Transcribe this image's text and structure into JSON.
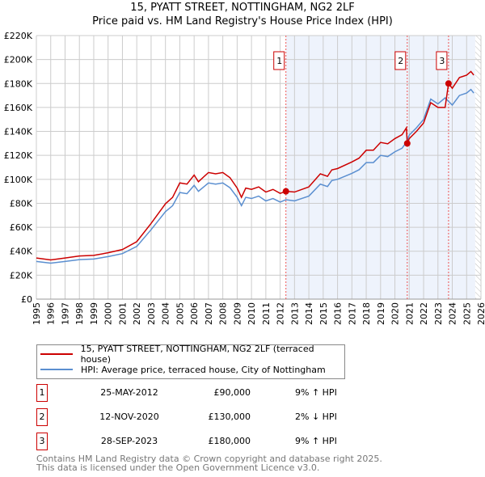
{
  "chart_data": {
    "type": "line",
    "title": "15, PYATT STREET, NOTTINGHAM, NG2 2LF",
    "subtitle": "Price paid vs. HM Land Registry's House Price Index (HPI)",
    "xlim": [
      1995,
      2026
    ],
    "ylim": [
      0,
      220000
    ],
    "x_ticks": [
      "1995",
      "1996",
      "1997",
      "1998",
      "1999",
      "2000",
      "2001",
      "2002",
      "2003",
      "2004",
      "2005",
      "2006",
      "2007",
      "2008",
      "2009",
      "2010",
      "2011",
      "2012",
      "2013",
      "2014",
      "2015",
      "2016",
      "2017",
      "2018",
      "2019",
      "2020",
      "2021",
      "2022",
      "2023",
      "2024",
      "2025",
      "2026"
    ],
    "y_ticks": [
      {
        "v": 0,
        "l": "£0"
      },
      {
        "v": 20000,
        "l": "£20K"
      },
      {
        "v": 40000,
        "l": "£40K"
      },
      {
        "v": 60000,
        "l": "£60K"
      },
      {
        "v": 80000,
        "l": "£80K"
      },
      {
        "v": 100000,
        "l": "£100K"
      },
      {
        "v": 120000,
        "l": "£120K"
      },
      {
        "v": 140000,
        "l": "£140K"
      },
      {
        "v": 160000,
        "l": "£160K"
      },
      {
        "v": 180000,
        "l": "£180K"
      },
      {
        "v": 200000,
        "l": "£200K"
      },
      {
        "v": 220000,
        "l": "£220K"
      }
    ],
    "grid": true,
    "shaded_range": [
      2012.4,
      2025.6
    ],
    "hatched_range": [
      2025.6,
      2026
    ],
    "series": [
      {
        "name": "15, PYATT STREET, NOTTINGHAM, NG2 2LF (terraced house)",
        "color": "#cc0000",
        "x": [
          1995,
          1996,
          1997,
          1998,
          1999,
          2000,
          2001,
          2002,
          2003,
          2004,
          2004.5,
          2005,
          2005.5,
          2006,
          2006.3,
          2007,
          2007.5,
          2008,
          2008.5,
          2009,
          2009.3,
          2009.6,
          2010,
          2010.5,
          2011,
          2011.5,
          2012,
          2012.4,
          2013,
          2014,
          2014.8,
          2015.3,
          2015.6,
          2016,
          2017,
          2017.5,
          2018,
          2018.5,
          2019,
          2019.5,
          2020,
          2020.5,
          2020.8,
          2020.86,
          2021,
          2021.5,
          2022,
          2022.5,
          2023,
          2023.5,
          2023.74,
          2024,
          2024.5,
          2025,
          2025.3,
          2025.5
        ],
        "y": [
          34300,
          32700,
          34300,
          36000,
          36500,
          38700,
          41400,
          48000,
          63200,
          79600,
          85000,
          97000,
          96000,
          103600,
          98000,
          105700,
          104600,
          105700,
          101400,
          92700,
          85000,
          92700,
          91600,
          93700,
          89400,
          91600,
          88300,
          90000,
          89400,
          93700,
          104600,
          102500,
          107900,
          109000,
          114500,
          117700,
          124300,
          124300,
          130800,
          129700,
          134000,
          137300,
          143000,
          130000,
          134000,
          140000,
          147000,
          164000,
          160000,
          160000,
          180000,
          176000,
          185000,
          187000,
          190000,
          187000
        ]
      },
      {
        "name": "HPI: Average price, terraced house, City of Nottingham",
        "color": "#5b8fd0",
        "x": [
          1995,
          1996,
          1997,
          1998,
          1999,
          2000,
          2001,
          2002,
          2003,
          2004,
          2004.5,
          2005,
          2005.5,
          2006,
          2006.3,
          2007,
          2007.5,
          2008,
          2008.5,
          2009,
          2009.3,
          2009.6,
          2010,
          2010.5,
          2011,
          2011.5,
          2012,
          2012.4,
          2013,
          2014,
          2014.8,
          2015.3,
          2015.6,
          2016,
          2017,
          2017.5,
          2018,
          2018.5,
          2019,
          2019.5,
          2020,
          2020.5,
          2020.86,
          2021,
          2021.5,
          2022,
          2022.5,
          2023,
          2023.5,
          2024,
          2024.5,
          2025,
          2025.3,
          2025.5
        ],
        "y": [
          31500,
          30000,
          31500,
          33000,
          33500,
          35500,
          38000,
          44000,
          58000,
          73000,
          78000,
          89000,
          88000,
          95000,
          90000,
          97000,
          96000,
          97000,
          93000,
          85000,
          78000,
          85000,
          84000,
          86000,
          82000,
          84000,
          81000,
          83000,
          82000,
          86000,
          96000,
          94000,
          99000,
          100000,
          105000,
          108000,
          114000,
          114000,
          120000,
          119000,
          123000,
          126000,
          132000,
          137000,
          143000,
          150000,
          167000,
          163000,
          168000,
          162000,
          170000,
          172000,
          175000,
          172000
        ]
      }
    ],
    "sales": [
      {
        "n": "1",
        "x": 2012.4,
        "y": 90000,
        "date": "25-MAY-2012",
        "price": "£90,000",
        "hpi": "9% ↑ HPI"
      },
      {
        "n": "2",
        "x": 2020.86,
        "y": 130000,
        "date": "12-NOV-2020",
        "price": "£130,000",
        "hpi": "2% ↓ HPI"
      },
      {
        "n": "3",
        "x": 2023.74,
        "y": 180000,
        "date": "28-SEP-2023",
        "price": "£180,000",
        "hpi": "9% ↑ HPI"
      }
    ]
  },
  "footer": {
    "line1": "Contains HM Land Registry data © Crown copyright and database right 2025.",
    "line2": "This data is licensed under the Open Government Licence v3.0."
  }
}
